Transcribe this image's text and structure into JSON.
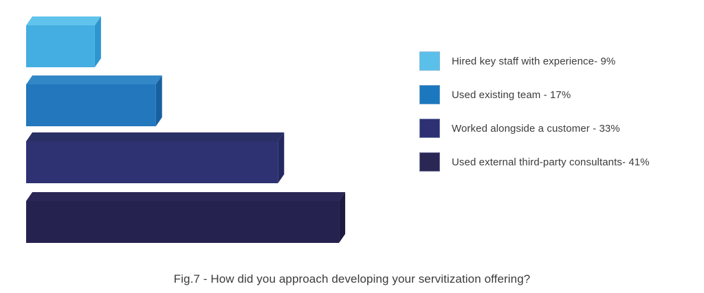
{
  "caption": "Fig.7 - How did you approach developing your servitization offering?",
  "chart_data": {
    "type": "bar",
    "orientation": "horizontal",
    "style": "3d-blocks",
    "title": "Fig.7 - How did you approach developing your servitization offering?",
    "categories": [
      "Hired key staff with experience",
      "Used existing team",
      "Worked alongside a customer",
      "Used external third-party consultants"
    ],
    "values": [
      9,
      17,
      33,
      41
    ],
    "unit": "%",
    "xlabel": "",
    "ylabel": "",
    "xlim": [
      0,
      45
    ],
    "grid": false,
    "axes_visible": false,
    "legend_position": "right",
    "bar_colors": [
      {
        "front": "#44ADE1",
        "top": "#60C3EC",
        "side": "#2E96CE"
      },
      {
        "front": "#2277BD",
        "top": "#3287C6",
        "side": "#185FA0"
      },
      {
        "front": "#2E3273",
        "top": "#293063",
        "side": "#232860"
      },
      {
        "front": "#262250",
        "top": "#2A2656",
        "side": "#1C1A3E"
      }
    ]
  },
  "legend": {
    "items": [
      {
        "label": "Hired key staff with experience- 9%",
        "swatch_color": "#5BC0E9"
      },
      {
        "label": "Used existing team - 17%",
        "swatch_color": "#1B78BE"
      },
      {
        "label": "Worked alongside a customer - 33%",
        "swatch_color": "#2D3173"
      },
      {
        "label": "Used external third-party consultants- 41%",
        "swatch_color": "#2B2755"
      }
    ]
  }
}
